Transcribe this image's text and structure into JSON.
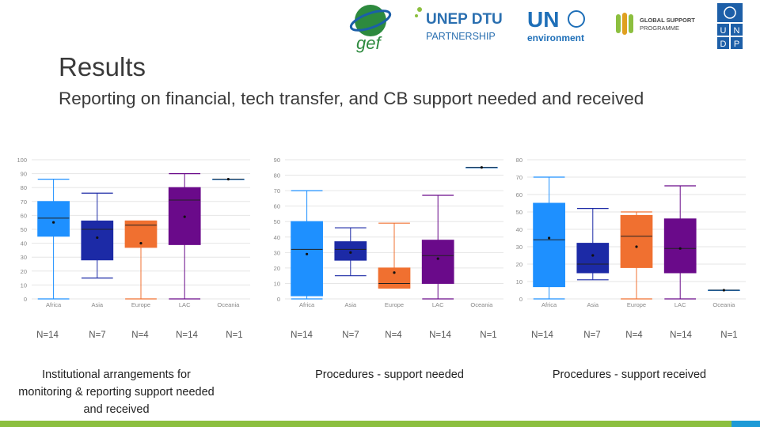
{
  "header": {
    "title": "Results",
    "subtitle": "Reporting on financial, tech transfer, and CB support needed and received"
  },
  "logos": {
    "gef": "gef",
    "unep_dtu_line1": "UNEP DTU",
    "unep_dtu_line2": "PARTNERSHIP",
    "un_env_top": "UN",
    "un_env_bottom": "environment",
    "gsp_line1": "GLOBAL SUPPORT",
    "gsp_line2": "PROGRAMME",
    "undp_letters": [
      "U",
      "N",
      "D",
      "P"
    ]
  },
  "colors": {
    "Africa": "#1e90ff",
    "Asia": "#1c2aa6",
    "Europe": "#f07030",
    "LAC": "#6a0a8a",
    "Oceania": "#1e90ff",
    "footer_green": "#8cbf3f",
    "footer_blue": "#1d9ad6"
  },
  "chart_data": [
    {
      "type": "box",
      "caption": "Institutional arrangements for monitoring & reporting support needed and received",
      "categories": [
        "Africa",
        "Asia",
        "Europe",
        "LAC",
        "Oceania"
      ],
      "n_labels": [
        "N=14",
        "N=7",
        "N=4",
        "N=14",
        "N=1"
      ],
      "ylim": [
        0,
        100
      ],
      "yticks": [
        0,
        10,
        20,
        30,
        40,
        50,
        60,
        70,
        80,
        90,
        100
      ],
      "boxes": [
        {
          "name": "Africa",
          "min": 0,
          "q1": 45,
          "median": 58,
          "q3": 70,
          "max": 86,
          "mean": 55
        },
        {
          "name": "Asia",
          "min": 15,
          "q1": 28,
          "median": 50,
          "q3": 56,
          "max": 76,
          "mean": 44
        },
        {
          "name": "Europe",
          "min": 0,
          "q1": 37,
          "median": 53,
          "q3": 56,
          "max": 56,
          "mean": 40
        },
        {
          "name": "LAC",
          "min": 0,
          "q1": 39,
          "median": 71,
          "q3": 80,
          "max": 90,
          "mean": 59
        },
        {
          "name": "Oceania",
          "min": 86,
          "q1": 86,
          "median": 86,
          "q3": 86,
          "max": 86,
          "mean": 86
        }
      ]
    },
    {
      "type": "box",
      "caption": "Procedures - support needed",
      "categories": [
        "Africa",
        "Asia",
        "Europe",
        "LAC",
        "Oceania"
      ],
      "n_labels": [
        "N=14",
        "N=7",
        "N=4",
        "N=14",
        "N=1"
      ],
      "ylim": [
        0,
        90
      ],
      "yticks": [
        0,
        10,
        20,
        30,
        40,
        50,
        60,
        70,
        80,
        90
      ],
      "boxes": [
        {
          "name": "Africa",
          "min": 0,
          "q1": 2,
          "median": 32,
          "q3": 50,
          "max": 70,
          "mean": 29
        },
        {
          "name": "Asia",
          "min": 15,
          "q1": 25,
          "median": 32,
          "q3": 37,
          "max": 46,
          "mean": 30
        },
        {
          "name": "Europe",
          "min": 7,
          "q1": 7,
          "median": 10,
          "q3": 20,
          "max": 49,
          "mean": 17
        },
        {
          "name": "LAC",
          "min": 0,
          "q1": 10,
          "median": 28,
          "q3": 38,
          "max": 67,
          "mean": 26
        },
        {
          "name": "Oceania",
          "min": 85,
          "q1": 85,
          "median": 85,
          "q3": 85,
          "max": 85,
          "mean": 85
        }
      ]
    },
    {
      "type": "box",
      "caption": "Procedures - support received",
      "categories": [
        "Africa",
        "Asia",
        "Europe",
        "LAC",
        "Oceania"
      ],
      "n_labels": [
        "N=14",
        "N=7",
        "N=4",
        "N=14",
        "N=1"
      ],
      "ylim": [
        0,
        80
      ],
      "yticks": [
        0,
        10,
        20,
        30,
        40,
        50,
        60,
        70,
        80
      ],
      "boxes": [
        {
          "name": "Africa",
          "min": 0,
          "q1": 7,
          "median": 34,
          "q3": 55,
          "max": 70,
          "mean": 35
        },
        {
          "name": "Asia",
          "min": 11,
          "q1": 15,
          "median": 20,
          "q3": 32,
          "max": 52,
          "mean": 25
        },
        {
          "name": "Europe",
          "min": 0,
          "q1": 18,
          "median": 36,
          "q3": 48,
          "max": 50,
          "mean": 30
        },
        {
          "name": "LAC",
          "min": 0,
          "q1": 15,
          "median": 29,
          "q3": 46,
          "max": 65,
          "mean": 29
        },
        {
          "name": "Oceania",
          "min": 5,
          "q1": 5,
          "median": 5,
          "q3": 5,
          "max": 5,
          "mean": 5
        }
      ]
    }
  ]
}
